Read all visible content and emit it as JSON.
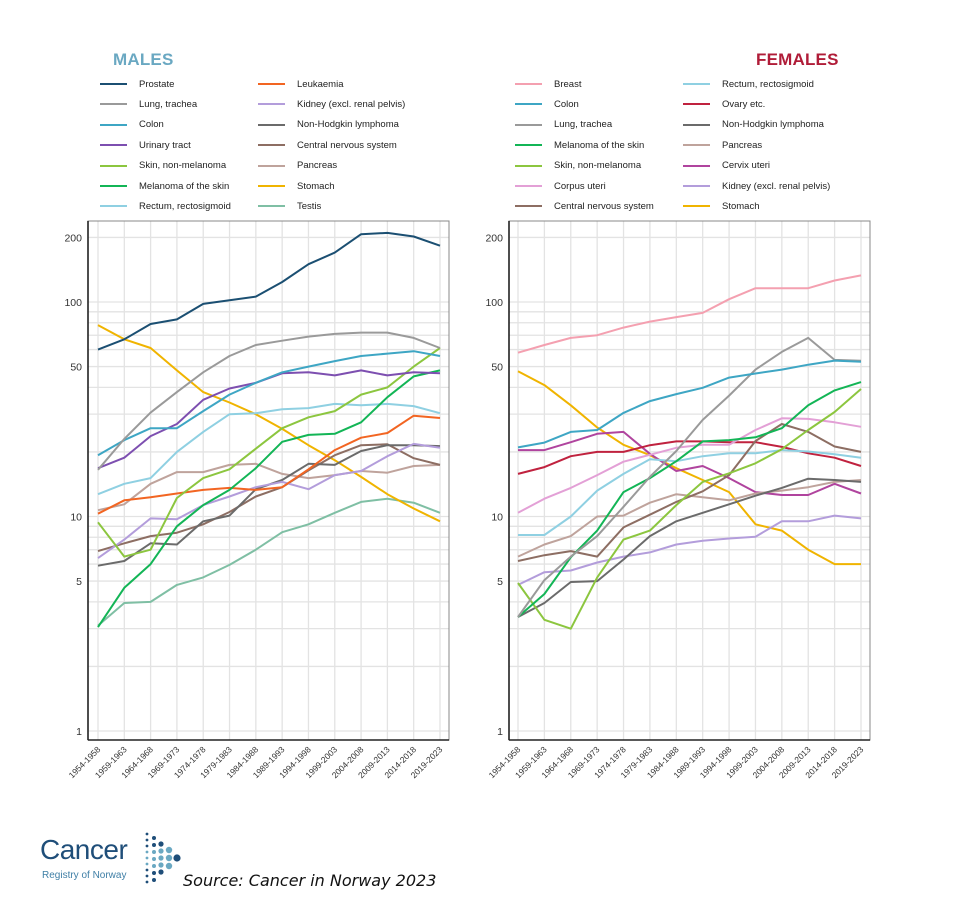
{
  "source": "Source: Cancer in Norway 2023",
  "logo": {
    "word": "Cancer",
    "sub": "Registry of Norway",
    "colors": {
      "dark": "#1f4e79",
      "light": "#6aa8c2"
    }
  },
  "chart_data": [
    {
      "type": "line",
      "title": "MALES",
      "title_color": "#6aa8c2",
      "xlabel": "",
      "ylabel": "",
      "yscale": "log",
      "ylim": [
        1,
        230
      ],
      "yticks": [
        1,
        5,
        10,
        50,
        100,
        200
      ],
      "grid": true,
      "legend": "top",
      "x": [
        "1954-1958",
        "1959-1963",
        "1964-1968",
        "1969-1973",
        "1974-1978",
        "1979-1983",
        "1984-1988",
        "1989-1993",
        "1994-1998",
        "1999-2003",
        "2004-2008",
        "2009-2013",
        "2014-2018",
        "2019-2023"
      ],
      "series": [
        {
          "name": "Prostate",
          "color": "#1b4f72",
          "values": [
            60,
            67,
            79,
            83,
            98,
            102,
            106,
            124,
            150,
            170,
            207,
            210,
            202,
            183
          ]
        },
        {
          "name": "Lung, trachea",
          "color": "#9a9a9a",
          "values": [
            16.5,
            23,
            30.5,
            38,
            47,
            56,
            63,
            66,
            69,
            71,
            72,
            72,
            68,
            61
          ]
        },
        {
          "name": "Colon",
          "color": "#3ea6c4",
          "values": [
            19.3,
            22.7,
            25.8,
            25.8,
            31,
            37,
            42,
            47,
            50,
            53,
            56,
            57.5,
            59,
            56
          ]
        },
        {
          "name": "Urinary tract",
          "color": "#7d4fb0",
          "values": [
            16.8,
            18.8,
            23.7,
            27,
            35,
            39.5,
            42,
            46.5,
            47,
            45.5,
            48,
            45.5,
            47,
            46.5
          ]
        },
        {
          "name": "Skin, non-melanoma",
          "color": "#8cc63f",
          "values": [
            9.4,
            6.5,
            7,
            12.2,
            15.1,
            16.6,
            20.7,
            25.8,
            29,
            31,
            37,
            40,
            50,
            61
          ]
        },
        {
          "name": "Melanoma of the skin",
          "color": "#13b556",
          "values": [
            3.05,
            4.65,
            6,
            9,
            11.3,
            13.3,
            16.8,
            22.3,
            24,
            24.3,
            27.5,
            36,
            45,
            48
          ]
        },
        {
          "name": "Rectum, rectosigmoid",
          "color": "#8fd0e2",
          "values": [
            12.7,
            14.2,
            15.1,
            20,
            24.8,
            30,
            30.3,
            31.6,
            32,
            33.5,
            33,
            33.5,
            32.7,
            30.3
          ]
        },
        {
          "name": "Leukaemia",
          "color": "#f26522",
          "values": [
            10.3,
            11.9,
            12.3,
            12.8,
            13.3,
            13.6,
            13.3,
            13.7,
            16.6,
            20.4,
            23.3,
            24.5,
            29.5,
            28.8
          ]
        },
        {
          "name": "Kidney (excl. renal pelvis)",
          "color": "#b39ddb",
          "values": [
            6.4,
            7.8,
            9.8,
            9.7,
            11.3,
            12.4,
            13.7,
            14.5,
            13.4,
            15.6,
            16.3,
            19.1,
            21.8,
            20.9
          ]
        },
        {
          "name": "Non-Hodgkin lymphoma",
          "color": "#6b6b6b",
          "values": [
            5.9,
            6.2,
            7.5,
            7.4,
            9.5,
            10.1,
            13.4,
            14.8,
            17.6,
            17.4,
            20.2,
            21.5,
            21.5,
            21.3
          ]
        },
        {
          "name": "Central nervous system",
          "color": "#8d6e63",
          "values": [
            6.9,
            7.5,
            8.1,
            8.4,
            9.2,
            10.5,
            12.4,
            13.7,
            16.4,
            19.3,
            21.5,
            21.7,
            18.7,
            17.4
          ]
        },
        {
          "name": "Pancreas",
          "color": "#bfa39c",
          "values": [
            10.7,
            11.4,
            14.2,
            16.1,
            16.1,
            17.4,
            17.6,
            15.8,
            15.1,
            15.6,
            16.3,
            16,
            17.2,
            17.4
          ]
        },
        {
          "name": "Stomach",
          "color": "#f0b400",
          "values": [
            78,
            67,
            61,
            48,
            38,
            34,
            30,
            25.6,
            21.5,
            18.3,
            15.3,
            12.7,
            10.9,
            9.5
          ]
        },
        {
          "name": "Testis",
          "color": "#7fbfa4",
          "values": [
            3.1,
            3.95,
            4,
            4.8,
            5.2,
            5.95,
            7,
            8.45,
            9.2,
            10.4,
            11.7,
            12.1,
            11.6,
            10.4
          ]
        }
      ]
    },
    {
      "type": "line",
      "title": "FEMALES",
      "title_color": "#b01c38",
      "xlabel": "",
      "ylabel": "",
      "yscale": "log",
      "ylim": [
        1,
        230
      ],
      "yticks": [
        1,
        5,
        10,
        50,
        100,
        200
      ],
      "grid": true,
      "legend": "top",
      "x": [
        "1954-1958",
        "1959-1963",
        "1964-1968",
        "1969-1973",
        "1974-1978",
        "1979-1983",
        "1984-1988",
        "1989-1993",
        "1994-1998",
        "1999-2003",
        "2004-2008",
        "2009-2013",
        "2014-2018",
        "2019-2023"
      ],
      "series": [
        {
          "name": "Breast",
          "color": "#f4a0b0",
          "values": [
            58,
            63,
            68,
            70,
            76,
            81,
            85,
            89,
            103,
            116,
            116,
            116,
            126,
            133
          ]
        },
        {
          "name": "Colon",
          "color": "#3ea6c4",
          "values": [
            21,
            22.1,
            24.8,
            25.3,
            30.4,
            34.5,
            37.2,
            39.8,
            44.4,
            46.4,
            48.4,
            51,
            53.3,
            52.7
          ]
        },
        {
          "name": "Lung, trachea",
          "color": "#9a9a9a",
          "values": [
            3.4,
            5.05,
            6.5,
            8.1,
            11.1,
            15.3,
            20.2,
            28.2,
            36.6,
            48.4,
            58.5,
            68,
            53.7,
            53.2
          ]
        },
        {
          "name": "Melanoma of the skin",
          "color": "#13b556",
          "values": [
            3.4,
            4.35,
            6.45,
            8.6,
            13,
            15.1,
            18.1,
            22.4,
            22.7,
            23.4,
            25.8,
            33,
            38.7,
            42.3
          ]
        },
        {
          "name": "Skin, non-melanoma",
          "color": "#8cc63f",
          "values": [
            4.9,
            3.3,
            3.0,
            5.2,
            7.8,
            8.6,
            11.3,
            14.5,
            15.9,
            17.7,
            20.6,
            25.3,
            30.7,
            39.3
          ]
        },
        {
          "name": "Corpus uteri",
          "color": "#e3a0d6",
          "values": [
            10.4,
            12.1,
            13.6,
            15.6,
            18,
            19.4,
            20.9,
            21.6,
            21.6,
            25.3,
            28.7,
            28.5,
            27.5,
            26.2
          ]
        },
        {
          "name": "Central nervous system",
          "color": "#8d6e63",
          "values": [
            6.2,
            6.6,
            6.9,
            6.5,
            8.9,
            10.2,
            11.7,
            13.1,
            15.6,
            22.5,
            27,
            24.8,
            21.2,
            20
          ]
        },
        {
          "name": "Rectum, rectosigmoid",
          "color": "#8fd0e2",
          "values": [
            8.2,
            8.2,
            10,
            13.2,
            15.8,
            18.5,
            18.1,
            19.1,
            19.7,
            19.7,
            20.4,
            20.1,
            19.5,
            18.8
          ]
        },
        {
          "name": "Ovary etc.",
          "color": "#c0223f",
          "values": [
            15.8,
            17.0,
            19.1,
            20,
            20,
            21.5,
            22.4,
            22.4,
            22.2,
            22.2,
            21.1,
            19.7,
            18.8,
            17.2
          ]
        },
        {
          "name": "Non-Hodgkin lymphoma",
          "color": "#6b6b6b",
          "values": [
            3.4,
            3.95,
            4.95,
            5.0,
            6.3,
            8.1,
            9.5,
            10.4,
            11.4,
            12.5,
            13.6,
            15,
            14.8,
            14.5
          ]
        },
        {
          "name": "Pancreas",
          "color": "#bfa39c",
          "values": [
            6.5,
            7.4,
            8.1,
            10,
            10.1,
            11.6,
            12.7,
            12.3,
            11.9,
            12.8,
            13.2,
            13.7,
            14.5,
            14.8
          ]
        },
        {
          "name": "Cervix uteri",
          "color": "#b0449e",
          "values": [
            20.4,
            20.4,
            22.2,
            24.3,
            24.8,
            19.6,
            16.3,
            17.2,
            15.1,
            13,
            12.6,
            12.6,
            14.2,
            12.8
          ]
        },
        {
          "name": "Kidney (excl. renal pelvis)",
          "color": "#b39ddb",
          "values": [
            4.8,
            5.5,
            5.6,
            6.1,
            6.5,
            6.8,
            7.4,
            7.7,
            7.9,
            8.05,
            9.5,
            9.5,
            10.1,
            9.8
          ]
        },
        {
          "name": "Stomach",
          "color": "#f0b400",
          "values": [
            47.5,
            41,
            33,
            26,
            21.6,
            19.3,
            16.8,
            14.8,
            13,
            9.2,
            8.6,
            7.0,
            6.0,
            6.0
          ]
        }
      ]
    }
  ]
}
